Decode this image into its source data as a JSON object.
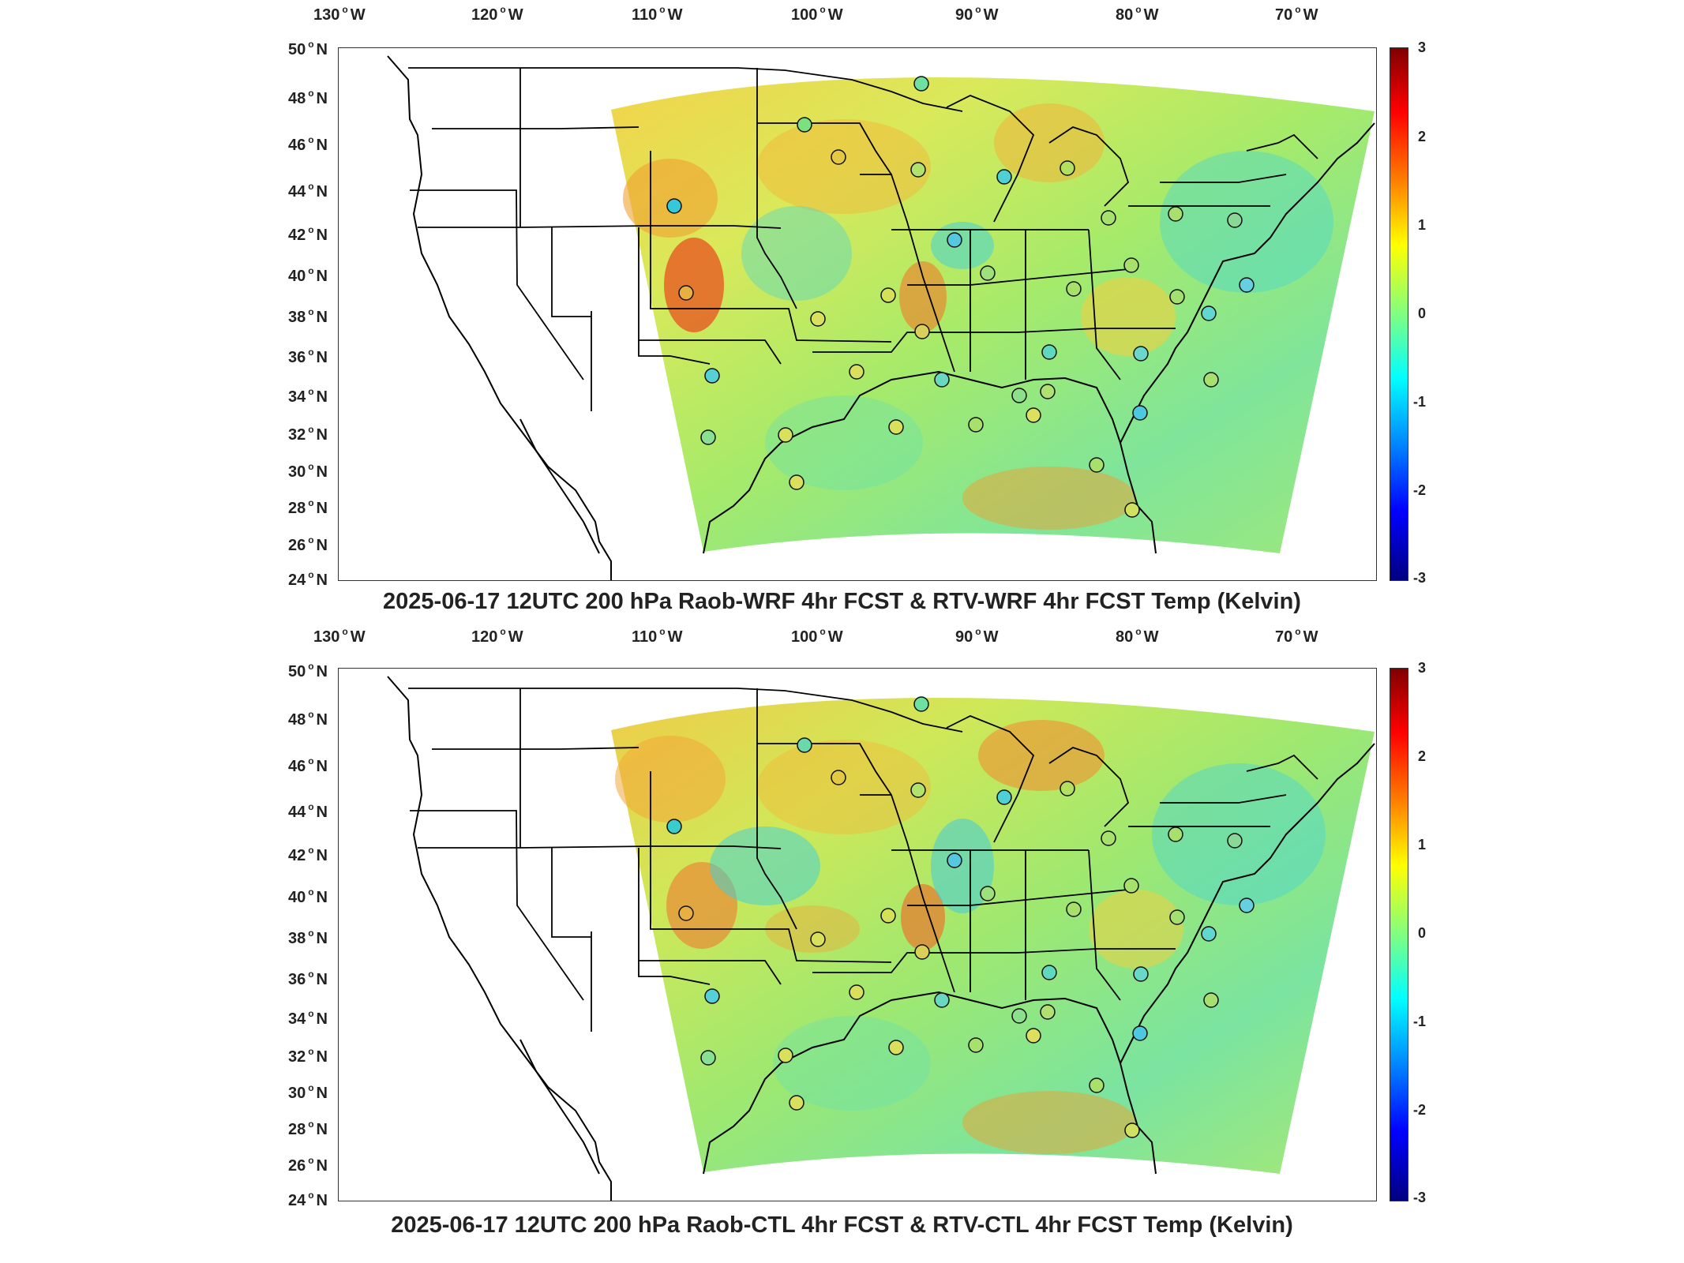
{
  "panels": [
    {
      "title": "2025-06-17 12UTC 200 hPa Raob-WRF 4hr FCST & RTV-WRF 4hr FCST Temp (Kelvin)",
      "lon_labels": [
        "130",
        "120",
        "110",
        "100",
        "90",
        "80",
        "70"
      ],
      "lat_labels": [
        "50",
        "48",
        "46",
        "44",
        "42",
        "40",
        "38",
        "36",
        "34",
        "32",
        "30",
        "28",
        "26",
        "24"
      ],
      "lon_suffix": "W",
      "lat_suffix": "N",
      "colorbar_ticks": [
        "3",
        "2",
        "1",
        "0",
        "-1",
        "-2",
        "-3"
      ]
    },
    {
      "title": "2025-06-17 12UTC 200 hPa Raob-CTL 4hr FCST & RTV-CTL 4hr FCST Temp (Kelvin)",
      "lon_labels": [
        "130",
        "120",
        "110",
        "100",
        "90",
        "80",
        "70"
      ],
      "lat_labels": [
        "50",
        "48",
        "46",
        "44",
        "42",
        "40",
        "38",
        "36",
        "34",
        "32",
        "30",
        "28",
        "26",
        "24"
      ],
      "lon_suffix": "W",
      "lat_suffix": "N",
      "colorbar_ticks": [
        "3",
        "2",
        "1",
        "0",
        "-1",
        "-2",
        "-3"
      ]
    }
  ],
  "colorbar_range": [
    -3,
    3
  ],
  "colorscale": [
    "#000080",
    "#0000ff",
    "#0080ff",
    "#00ffff",
    "#80ff80",
    "#ffff00",
    "#ff8000",
    "#ff0000",
    "#800000"
  ]
}
